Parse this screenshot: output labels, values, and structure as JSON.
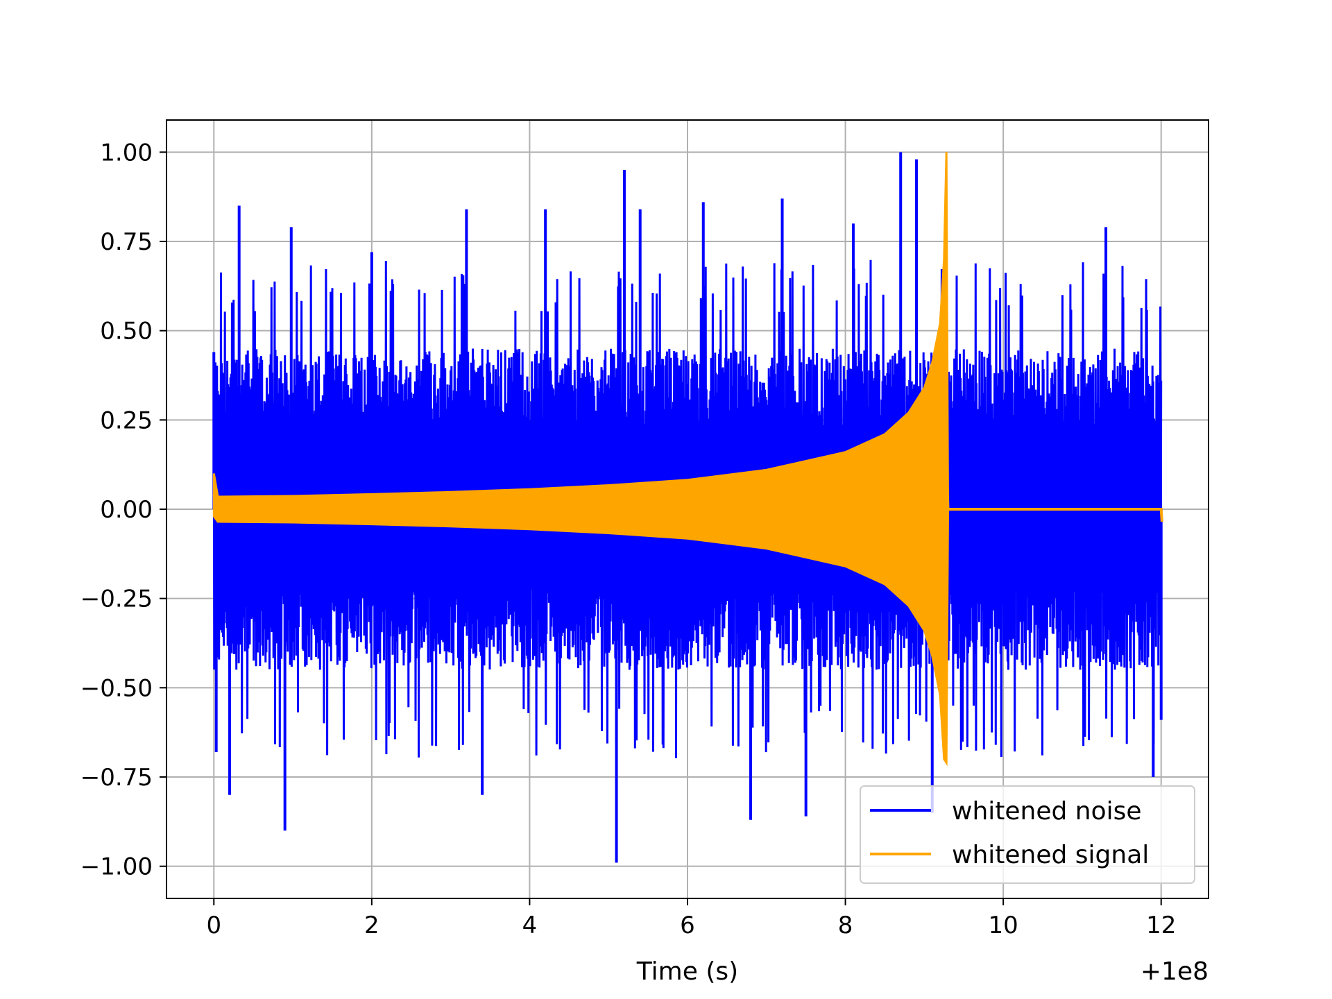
{
  "chart_data": {
    "type": "line",
    "xlabel": "Time (s)",
    "ylabel": "",
    "x_offset_label": "+1e8",
    "xlim": [
      -0.6,
      12.6
    ],
    "ylim": [
      -1.09,
      1.09
    ],
    "xticks": [
      0,
      2,
      4,
      6,
      8,
      10,
      12
    ],
    "yticks": [
      1.0,
      0.75,
      0.5,
      0.25,
      0.0,
      -0.25,
      -0.5,
      -0.75,
      -1.0
    ],
    "xtick_labels": [
      "0",
      "2",
      "4",
      "6",
      "8",
      "10",
      "12"
    ],
    "ytick_labels": [
      "1.00",
      "0.75",
      "0.50",
      "0.25",
      "0.00",
      "−0.25",
      "−0.50",
      "−0.75",
      "−1.00"
    ],
    "grid": true,
    "legend_position": "lower-right",
    "series": [
      {
        "name": "whitened noise",
        "color": "#0000ff",
        "kind": "noise-band",
        "x_range": [
          0,
          12
        ],
        "band": [
          -0.45,
          0.45
        ],
        "peaks": [
          {
            "x": 0.0,
            "y": 0.44
          },
          {
            "x": 0.03,
            "y": -0.68
          },
          {
            "x": 0.2,
            "y": -0.8
          },
          {
            "x": 0.32,
            "y": 0.85
          },
          {
            "x": 0.9,
            "y": -0.9
          },
          {
            "x": 0.98,
            "y": 0.79
          },
          {
            "x": 2.0,
            "y": 0.72
          },
          {
            "x": 3.2,
            "y": 0.84
          },
          {
            "x": 3.4,
            "y": -0.8
          },
          {
            "x": 4.2,
            "y": 0.84
          },
          {
            "x": 5.1,
            "y": -0.99
          },
          {
            "x": 5.2,
            "y": 0.95
          },
          {
            "x": 5.4,
            "y": 0.84
          },
          {
            "x": 6.2,
            "y": 0.86
          },
          {
            "x": 6.8,
            "y": -0.87
          },
          {
            "x": 7.2,
            "y": 0.87
          },
          {
            "x": 7.5,
            "y": -0.86
          },
          {
            "x": 8.1,
            "y": 0.8
          },
          {
            "x": 8.7,
            "y": 1.0
          },
          {
            "x": 8.9,
            "y": 0.98
          },
          {
            "x": 9.1,
            "y": -0.85
          },
          {
            "x": 11.3,
            "y": 0.79
          },
          {
            "x": 11.9,
            "y": -0.75
          },
          {
            "x": 12.0,
            "y": -0.59
          }
        ]
      },
      {
        "name": "whitened signal",
        "color": "#ffa500",
        "kind": "chirp",
        "x": [
          0.0,
          0.05,
          1,
          2,
          3,
          4,
          5,
          6,
          7,
          8,
          8.5,
          8.8,
          9.0,
          9.1,
          9.2,
          9.25,
          9.28,
          9.3,
          12.0,
          12.01
        ],
        "upper": [
          0.1,
          0.035,
          0.037,
          0.042,
          0.048,
          0.056,
          0.067,
          0.082,
          0.11,
          0.16,
          0.21,
          0.27,
          0.34,
          0.41,
          0.52,
          0.7,
          1.0,
          0.0,
          0.0,
          -0.035
        ],
        "lower": [
          -0.02,
          -0.035,
          -0.037,
          -0.042,
          -0.048,
          -0.056,
          -0.067,
          -0.082,
          -0.11,
          -0.16,
          -0.21,
          -0.27,
          -0.34,
          -0.41,
          -0.52,
          -0.7,
          -0.71,
          0.0,
          0.0,
          -0.035
        ]
      }
    ]
  }
}
